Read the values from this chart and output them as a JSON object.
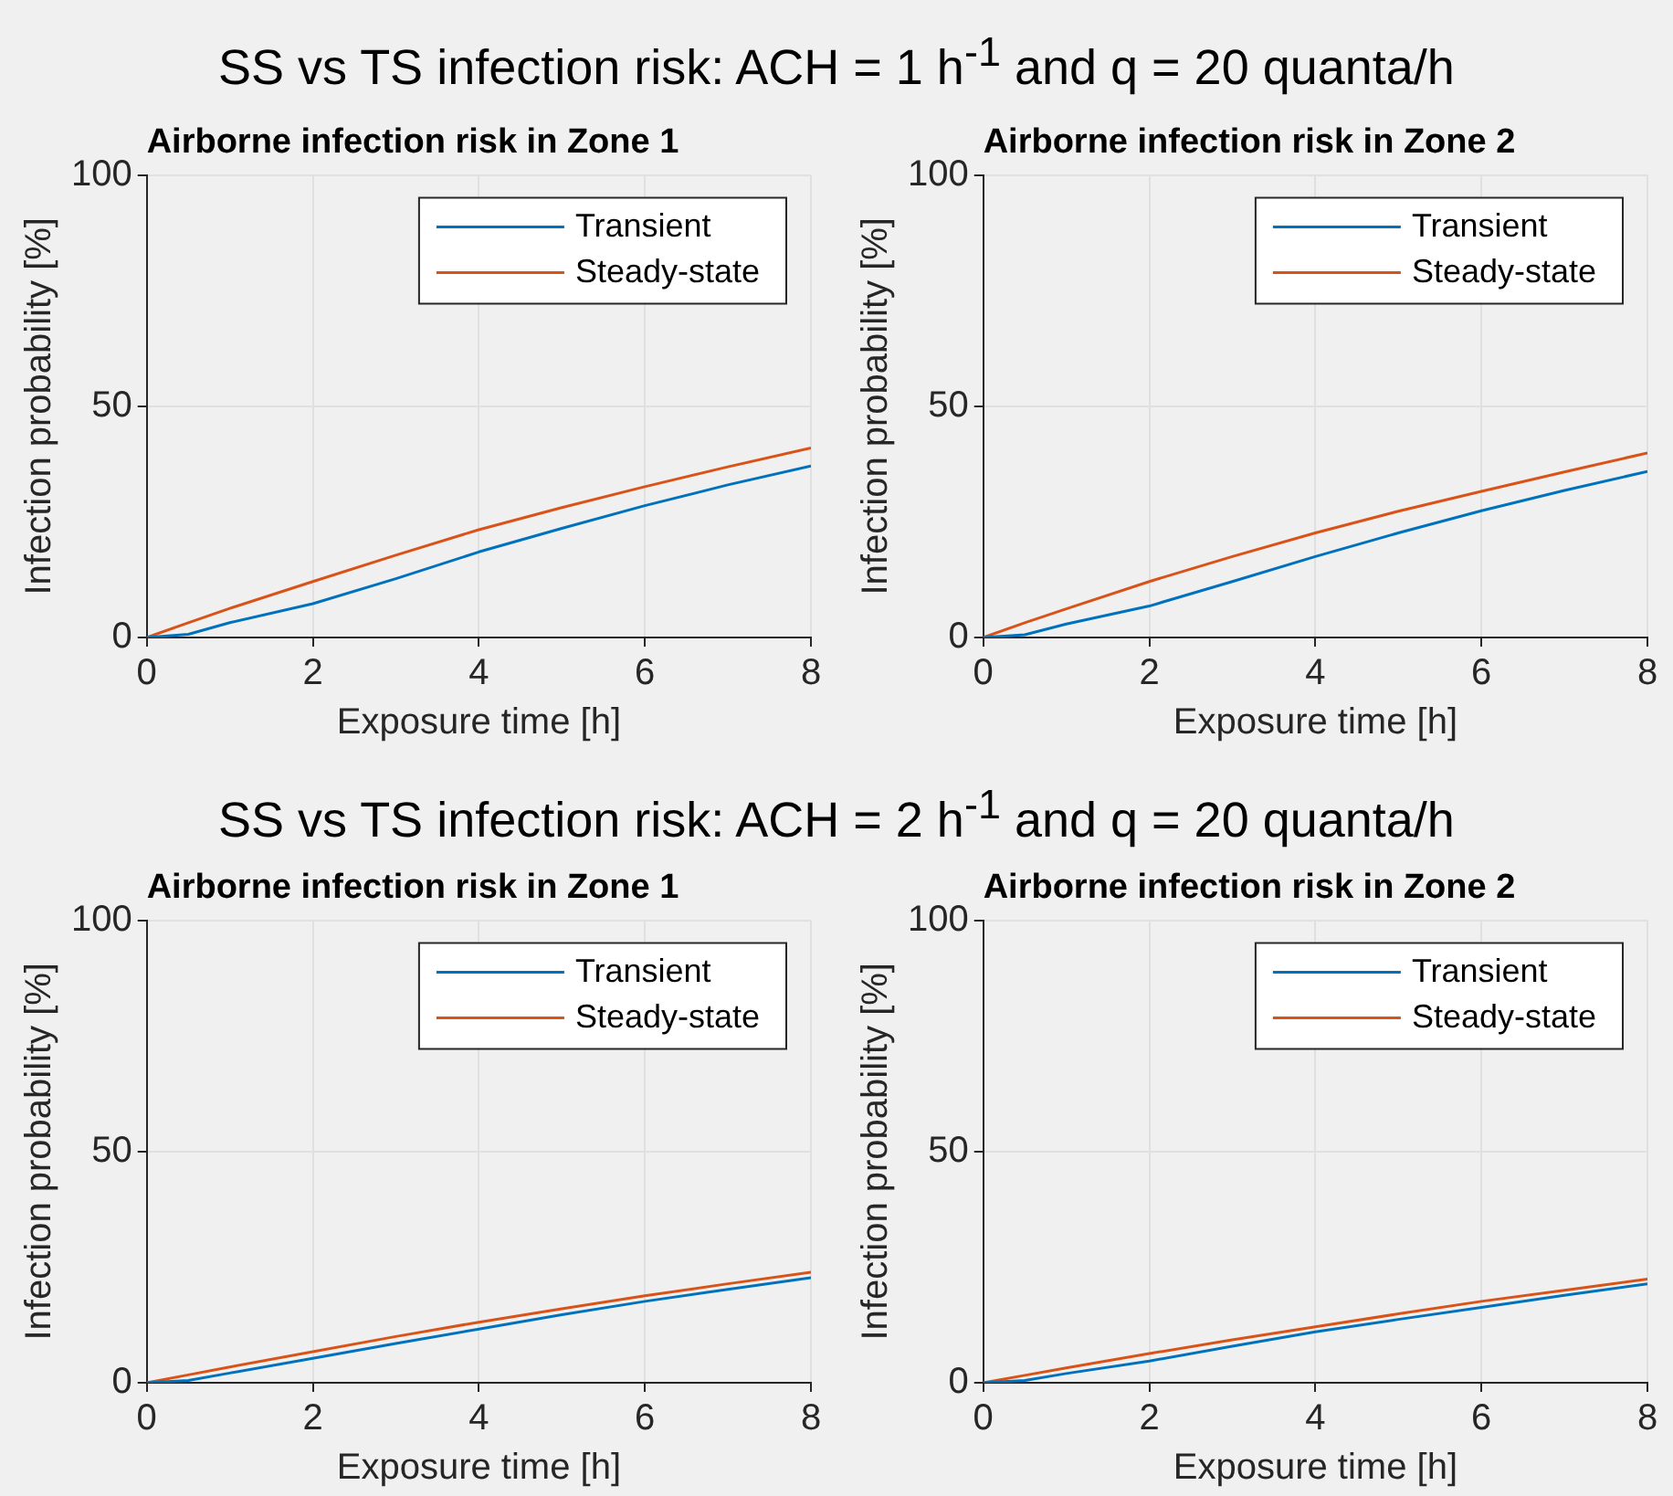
{
  "chart_data": [
    {
      "type": "line",
      "title": "Airborne infection risk in Zone 1",
      "annotations": [
        "SS vs TS infection risk: ACH = 1 h$^{-1}$ and q = 20 quanta/h"
      ],
      "xlabel": "Exposure time [h]",
      "ylabel": "Infection probability [%]",
      "x": [
        0,
        0.5,
        1,
        2,
        3,
        4,
        5,
        6,
        7,
        8
      ],
      "xlim": [
        0,
        8
      ],
      "xticks": [
        0,
        2,
        4,
        6,
        8
      ],
      "ylim": [
        0,
        100
      ],
      "yticks": [
        0,
        50,
        100
      ],
      "grid": true,
      "legend": "top right",
      "series": [
        {
          "name": "Transient",
          "color": "#0072bd",
          "values": [
            0,
            0.7,
            3.2,
            7.3,
            12.7,
            18.5,
            23.6,
            28.5,
            33.0,
            37.1
          ]
        },
        {
          "name": "Steady-state",
          "color": "#d95319",
          "values": [
            0,
            3.2,
            6.3,
            12.1,
            17.8,
            23.3,
            28.1,
            32.6,
            36.9,
            41.0
          ]
        }
      ]
    },
    {
      "type": "line",
      "title": "Airborne infection risk in Zone 2",
      "xlabel": "Exposure time [h]",
      "ylabel": "Infection probability [%]",
      "x": [
        0,
        0.5,
        1,
        2,
        3,
        4,
        5,
        6,
        7,
        8
      ],
      "xlim": [
        0,
        8
      ],
      "xticks": [
        0,
        2,
        4,
        6,
        8
      ],
      "ylim": [
        0,
        100
      ],
      "yticks": [
        0,
        50,
        100
      ],
      "grid": true,
      "legend": "top right",
      "series": [
        {
          "name": "Transient",
          "color": "#0072bd",
          "values": [
            0,
            0.6,
            2.9,
            6.8,
            12.1,
            17.5,
            22.6,
            27.4,
            31.8,
            35.9
          ]
        },
        {
          "name": "Steady-state",
          "color": "#d95319",
          "values": [
            0,
            3.2,
            6.2,
            12.1,
            17.5,
            22.6,
            27.3,
            31.6,
            35.8,
            39.9
          ]
        }
      ]
    },
    {
      "type": "line",
      "title": "Airborne infection risk in Zone 1",
      "annotations": [
        "SS vs TS infection risk: ACH = 2 h$^{-1}$ and q = 20 quanta/h"
      ],
      "xlabel": "Exposure time [h]",
      "ylabel": "Infection probability [%]",
      "x": [
        0,
        0.5,
        1,
        2,
        3,
        4,
        5,
        6,
        7,
        8
      ],
      "xlim": [
        0,
        8
      ],
      "xticks": [
        0,
        2,
        4,
        6,
        8
      ],
      "ylim": [
        0,
        100
      ],
      "yticks": [
        0,
        50,
        100
      ],
      "grid": true,
      "legend": "top right",
      "series": [
        {
          "name": "Transient",
          "color": "#0072bd",
          "values": [
            0,
            0.5,
            2.1,
            5.3,
            8.5,
            11.6,
            14.7,
            17.6,
            20.2,
            22.7
          ]
        },
        {
          "name": "Steady-state",
          "color": "#d95319",
          "values": [
            0,
            1.7,
            3.4,
            6.7,
            10.0,
            13.1,
            16.0,
            18.8,
            21.4,
            23.9
          ]
        }
      ]
    },
    {
      "type": "line",
      "title": "Airborne infection risk in Zone 2",
      "xlabel": "Exposure time [h]",
      "ylabel": "Infection probability [%]",
      "x": [
        0,
        0.5,
        1,
        2,
        3,
        4,
        5,
        6,
        7,
        8
      ],
      "xlim": [
        0,
        8
      ],
      "xticks": [
        0,
        2,
        4,
        6,
        8
      ],
      "ylim": [
        0,
        100
      ],
      "yticks": [
        0,
        50,
        100
      ],
      "grid": true,
      "legend": "top right",
      "series": [
        {
          "name": "Transient",
          "color": "#0072bd",
          "values": [
            0,
            0.5,
            2.0,
            4.7,
            7.9,
            11.0,
            13.7,
            16.3,
            18.9,
            21.4
          ]
        },
        {
          "name": "Steady-state",
          "color": "#d95319",
          "values": [
            0,
            1.6,
            3.2,
            6.3,
            9.3,
            12.1,
            14.9,
            17.6,
            20.0,
            22.4
          ]
        }
      ]
    }
  ]
}
